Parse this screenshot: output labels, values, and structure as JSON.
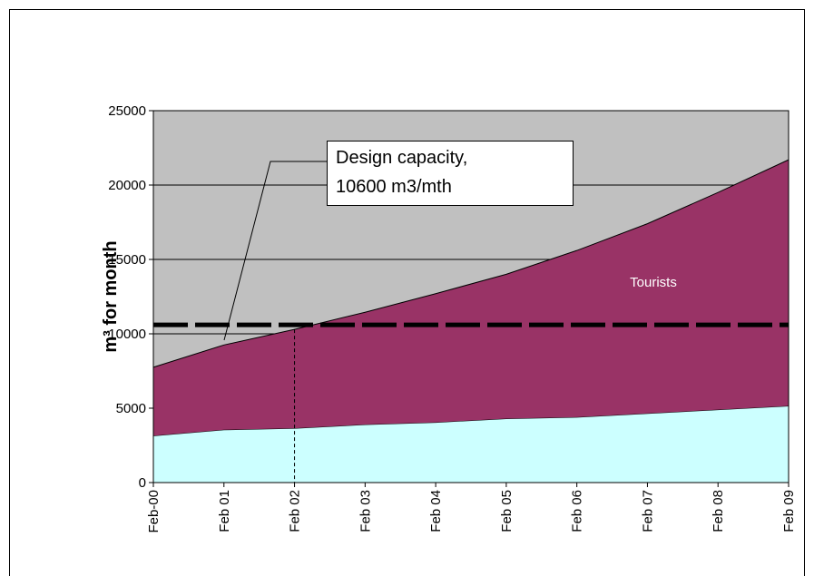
{
  "chart_data": {
    "type": "stacked_area",
    "y_label": "m³ for month",
    "categories": [
      "Feb-00",
      "Feb 01",
      "Feb 02",
      "Feb 03",
      "Feb 04",
      "Feb 05",
      "Feb 06",
      "Feb 07",
      "Feb 08",
      "Feb 09"
    ],
    "series": [
      {
        "color": "#ccffff",
        "values": [
          3150,
          3550,
          3650,
          3900,
          4050,
          4300,
          4400,
          4650,
          4900,
          5150
        ]
      },
      {
        "name": "Tourists",
        "color": "#993366",
        "values": [
          4600,
          5700,
          6650,
          7550,
          8650,
          9700,
          11200,
          12750,
          14600,
          16550
        ]
      }
    ],
    "reference_line": {
      "value": 10600,
      "label": [
        "Design capacity,",
        "10600 m3/mth"
      ]
    },
    "plot_background": "#c0c0c0",
    "ylim": [
      0,
      25000
    ],
    "yticks": [
      0,
      5000,
      10000,
      15000,
      20000,
      25000
    ],
    "grid": true
  }
}
